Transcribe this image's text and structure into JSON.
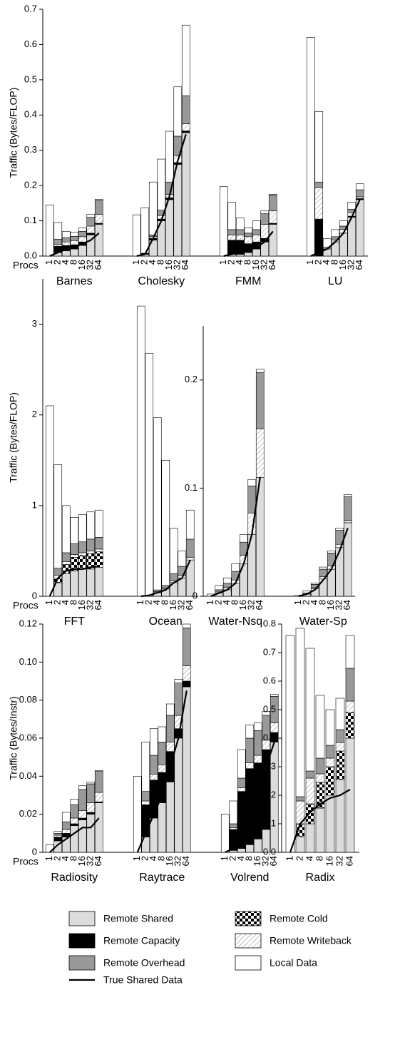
{
  "chart_data": [
    {
      "type": "grouped-stacked-bar",
      "y_label": "Traffic (Bytes/FLOP)",
      "x_label": "Procs",
      "ylim": [
        0,
        0.7
      ],
      "yticks": [
        {
          "value": 0,
          "label": "0.0"
        },
        0.1,
        0.2,
        0.3,
        0.4,
        0.5,
        0.6,
        0.7
      ],
      "categories": [
        "1",
        "2",
        "4",
        "8",
        "16",
        "32",
        "64"
      ],
      "groups": [
        {
          "name": "Barnes",
          "segments": [
            [
              0,
              0.01,
              0.015,
              0.02,
              0.03,
              0.06,
              0.09
            ],
            [
              0,
              0,
              0,
              0,
              0,
              0,
              0
            ],
            [
              0,
              0.018,
              0.015,
              0.012,
              0.01,
              0.005,
              0.003
            ],
            [
              0,
              0.005,
              0.01,
              0.012,
              0.015,
              0.02,
              0.025
            ],
            [
              0,
              0.015,
              0.012,
              0.012,
              0.015,
              0.025,
              0.04
            ],
            [
              0.145,
              0.047,
              0.018,
              0.012,
              0.01,
              0.008,
              0.003
            ]
          ],
          "true_shared": [
            0,
            0.01,
            0.02,
            0.025,
            0.035,
            0.045,
            0.065
          ]
        },
        {
          "name": "Cholesky",
          "segments": [
            [
              0,
              0.005,
              0.045,
              0.1,
              0.16,
              0.26,
              0.35
            ],
            [
              0,
              0,
              0,
              0,
              0,
              0,
              0
            ],
            [
              0,
              0.003,
              0.005,
              0.005,
              0.005,
              0.005,
              0.005
            ],
            [
              0,
              0,
              0.005,
              0.01,
              0.01,
              0.02,
              0.02
            ],
            [
              0,
              0,
              0.005,
              0.015,
              0.035,
              0.055,
              0.08
            ],
            [
              0.117,
              0.129,
              0.15,
              0.145,
              0.144,
              0.14,
              0.2
            ]
          ],
          "true_shared": [
            0,
            0.005,
            0.05,
            0.1,
            0.17,
            0.27,
            0.345
          ]
        },
        {
          "name": "FMM",
          "segments": [
            [
              0,
              0.005,
              0.005,
              0.01,
              0.02,
              0.04,
              0.09
            ],
            [
              0,
              0,
              0,
              0,
              0,
              0,
              0
            ],
            [
              0,
              0.04,
              0.04,
              0.025,
              0.02,
              0.01,
              0.003
            ],
            [
              0,
              0.015,
              0.015,
              0.02,
              0.02,
              0.04,
              0.035
            ],
            [
              0,
              0.015,
              0.015,
              0.01,
              0.015,
              0.03,
              0.045
            ],
            [
              0.197,
              0.078,
              0.033,
              0.015,
              0.025,
              0.008,
              0.002
            ]
          ],
          "true_shared": [
            0,
            0.005,
            0.01,
            0.015,
            0.025,
            0.04,
            0.07
          ]
        },
        {
          "name": "LU",
          "segments": [
            [
              0,
              0,
              0.02,
              0.04,
              0.065,
              0.11,
              0.16
            ],
            [
              0,
              0,
              0,
              0,
              0,
              0,
              0
            ],
            [
              0,
              0.105,
              0,
              0,
              0,
              0.003,
              0.003
            ],
            [
              0,
              0.09,
              0,
              0.005,
              0.01,
              0.01,
              0.005
            ],
            [
              0,
              0.015,
              0.005,
              0.01,
              0.01,
              0.01,
              0.02
            ],
            [
              0.62,
              0.2,
              0.025,
              0.02,
              0.015,
              0.02,
              0.017
            ]
          ],
          "true_shared": [
            0,
            0.01,
            0.02,
            0.04,
            0.065,
            0.11,
            0.16
          ]
        }
      ]
    },
    {
      "type": "grouped-stacked-bar",
      "y_label": "Traffic (Bytes/FLOP)",
      "x_label": "Procs",
      "ylim": [
        0,
        3.5
      ],
      "yticks": [
        0,
        1,
        2,
        3
      ],
      "categories": [
        "1",
        "2",
        "4",
        "8",
        "16",
        "32",
        "64"
      ],
      "groups": [
        {
          "name": "FFT",
          "segments": [
            [
              0,
              0.15,
              0.25,
              0.28,
              0.3,
              0.3,
              0.32
            ],
            [
              0,
              0.05,
              0.1,
              0.15,
              0.15,
              0.17,
              0.17
            ],
            [
              0,
              0,
              0,
              0,
              0,
              0,
              0
            ],
            [
              0,
              0.03,
              0.03,
              0.03,
              0.03,
              0.03,
              0.03
            ],
            [
              0,
              0.08,
              0.1,
              0.12,
              0.12,
              0.13,
              0.13
            ],
            [
              2.1,
              1.14,
              0.52,
              0.29,
              0.3,
              0.3,
              0.3
            ]
          ],
          "true_shared": [
            0,
            0.2,
            0.28,
            0.3,
            0.3,
            0.32,
            0.33
          ]
        },
        {
          "name": "Ocean",
          "segments": [
            [
              0,
              0.01,
              0.04,
              0.08,
              0.15,
              0.2,
              0.4
            ],
            [
              0,
              0,
              0,
              0,
              0,
              0,
              0
            ],
            [
              0,
              0,
              0,
              0,
              0,
              0,
              0
            ],
            [
              0,
              0,
              0.01,
              0.01,
              0.02,
              0.03,
              0.03
            ],
            [
              0,
              0,
              0.02,
              0.03,
              0.08,
              0.1,
              0.2
            ],
            [
              3.2,
              2.67,
              1.9,
              1.38,
              0.5,
              0.17,
              0.32
            ]
          ],
          "true_shared": [
            0,
            0.01,
            0.04,
            0.07,
            0.15,
            0.2,
            0.4
          ]
        }
      ]
    },
    {
      "type": "grouped-stacked-bar",
      "ylim": [
        0,
        0.25
      ],
      "yticks": [
        0,
        0.1,
        0.2
      ],
      "categories": [
        "1",
        "2",
        "4",
        "8",
        "16",
        "32",
        "64"
      ],
      "groups": [
        {
          "name": "Water-Nsq",
          "segments": [
            [
              0,
              0.003,
              0.006,
              0.012,
              0.03,
              0.057,
              0.11
            ],
            [
              0,
              0,
              0,
              0,
              0,
              0,
              0
            ],
            [
              0,
              0,
              0,
              0,
              0,
              0,
              0
            ],
            [
              0,
              0.001,
              0.002,
              0.003,
              0.008,
              0.02,
              0.045
            ],
            [
              0,
              0.002,
              0.004,
              0.008,
              0.012,
              0.025,
              0.052
            ],
            [
              0.002,
              0.004,
              0.005,
              0.007,
              0.007,
              0.006,
              0.003
            ]
          ],
          "true_shared": [
            0,
            0.003,
            0.006,
            0.012,
            0.03,
            0.057,
            0.11
          ]
        },
        {
          "name": "Water-Sp",
          "segments": [
            [
              0,
              0.002,
              0.007,
              0.016,
              0.025,
              0.045,
              0.068
            ],
            [
              0,
              0,
              0,
              0,
              0,
              0,
              0
            ],
            [
              0,
              0,
              0,
              0,
              0,
              0,
              0
            ],
            [
              0,
              0,
              0.001,
              0.002,
              0.003,
              0.003,
              0.002
            ],
            [
              0,
              0.001,
              0.003,
              0.007,
              0.012,
              0.013,
              0.022
            ],
            [
              0.001,
              0.002,
              0.001,
              0.002,
              0.002,
              0.002,
              0.002
            ]
          ],
          "true_shared": [
            0,
            0.002,
            0.006,
            0.015,
            0.025,
            0.042,
            0.063
          ]
        }
      ]
    },
    {
      "type": "grouped-stacked-bar",
      "y_label": "Traffic (Bytes/Instr)",
      "x_label": "Procs",
      "ylim": [
        0,
        0.12
      ],
      "yticks": [
        0,
        0.02,
        0.04,
        0.06,
        0.08,
        {
          "value": 0.1,
          "label": "0.10"
        },
        0.12
      ],
      "categories": [
        "1",
        "2",
        "4",
        "8",
        "16",
        "32",
        "64"
      ],
      "groups": [
        {
          "name": "Radiosity",
          "segments": [
            [
              0,
              0.006,
              0.008,
              0.014,
              0.017,
              0.02,
              0.026
            ],
            [
              0,
              0,
              0,
              0,
              0,
              0,
              0
            ],
            [
              0,
              0.002,
              0.002,
              0.001,
              0.001,
              0.001,
              0.0005
            ],
            [
              0,
              0.001,
              0.002,
              0.003,
              0.004,
              0.005,
              0.005
            ],
            [
              0,
              0.001,
              0.004,
              0.007,
              0.011,
              0.01,
              0.011
            ],
            [
              0.004,
              0.001,
              0.005,
              0.003,
              0.002,
              0.001,
              0.0005
            ]
          ],
          "true_shared": [
            0,
            0.004,
            0.007,
            0.01,
            0.013,
            0.013,
            0.018
          ]
        },
        {
          "name": "Raytrace",
          "segments": [
            [
              0,
              0.008,
              0.018,
              0.026,
              0.037,
              0.06,
              0.087
            ],
            [
              0,
              0,
              0,
              0,
              0,
              0,
              0
            ],
            [
              0,
              0.017,
              0.02,
              0.016,
              0.016,
              0.005,
              0.003
            ],
            [
              0,
              0.002,
              0.003,
              0.004,
              0.005,
              0.007,
              0.008
            ],
            [
              0,
              0.005,
              0.01,
              0.012,
              0.014,
              0.017,
              0.02
            ],
            [
              0.04,
              0.026,
              0.014,
              0.008,
              0.006,
              0.002,
              0.002
            ]
          ],
          "true_shared": [
            0,
            0.01,
            0.02,
            0.03,
            0.045,
            0.06,
            0.085
          ]
        },
        {
          "name": "Volrend",
          "segments": [
            [
              0,
              0.001,
              0.002,
              0.004,
              0.007,
              0.012,
              0.058
            ],
            [
              0,
              0,
              0,
              0,
              0,
              0,
              0
            ],
            [
              0,
              0.011,
              0.03,
              0.04,
              0.04,
              0.042,
              0.005
            ],
            [
              0,
              0.001,
              0.002,
              0.003,
              0.004,
              0.005,
              0.005
            ],
            [
              0,
              0.002,
              0.005,
              0.013,
              0.013,
              0.013,
              0.014
            ],
            [
              0.02,
              0.012,
              0.015,
              0.007,
              0.004,
              0.002,
              0.001
            ]
          ],
          "true_shared": [
            0,
            0.002,
            0.012,
            0.022,
            0.032,
            0.045,
            0.058
          ]
        }
      ]
    },
    {
      "type": "grouped-stacked-bar",
      "ylim": [
        0,
        0.8
      ],
      "yticks": [
        {
          "value": 0,
          "label": "0.0"
        },
        0.1,
        0.2,
        0.3,
        0.4,
        0.5,
        0.6,
        0.7,
        0.8
      ],
      "categories": [
        "1",
        "2",
        "4",
        "8",
        "16",
        "32",
        "64"
      ],
      "groups": [
        {
          "name": "Radix",
          "segments": [
            [
              0,
              0.055,
              0.1,
              0.155,
              0.2,
              0.255,
              0.4
            ],
            [
              0,
              0.045,
              0.07,
              0.09,
              0.1,
              0.1,
              0.09
            ],
            [
              0,
              0,
              0,
              0,
              0,
              0,
              0
            ],
            [
              0,
              0.08,
              0.09,
              0.03,
              0.03,
              0.03,
              0.04
            ],
            [
              0,
              0.015,
              0.025,
              0.055,
              0.045,
              0.045,
              0.115
            ],
            [
              0.76,
              0.59,
              0.43,
              0.22,
              0.125,
              0.11,
              0.115
            ]
          ],
          "true_shared": [
            0,
            0.1,
            0.14,
            0.17,
            0.19,
            0.2,
            0.22
          ]
        }
      ]
    }
  ],
  "legend": {
    "segments": [
      {
        "name": "Remote Shared",
        "color": "#dcdcdc"
      },
      {
        "name": "Remote Cold",
        "color": "#000000",
        "pattern": "checker"
      },
      {
        "name": "Remote Capacity",
        "color": "#000000"
      },
      {
        "name": "Remote Writeback",
        "color": "#888888",
        "pattern": "hatch"
      },
      {
        "name": "Remote Overhead",
        "color": "#999999"
      },
      {
        "name": "Local Data",
        "color": "#ffffff"
      }
    ],
    "line": {
      "name": "True Shared Data",
      "color": "#000000"
    }
  }
}
